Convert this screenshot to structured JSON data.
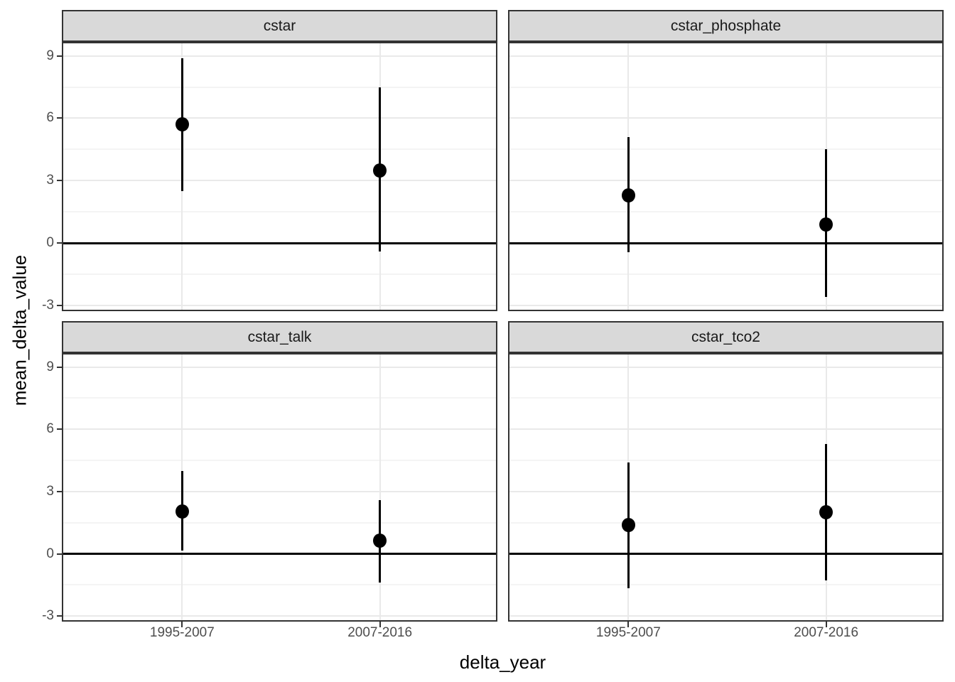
{
  "chart_data": {
    "type": "pointrange",
    "xlabel": "delta_year",
    "ylabel": "mean_delta_value",
    "categories": [
      "1995-2007",
      "2007-2016"
    ],
    "y_ticks": [
      9,
      6,
      3,
      0,
      -3
    ],
    "y_minor_ticks": [
      7.5,
      4.5,
      1.5,
      -1.5
    ],
    "ylim": [
      -3.2,
      9.6
    ],
    "reference_line_y": 0,
    "grid": true,
    "legend": "none",
    "facets": [
      {
        "label": "cstar",
        "points": [
          {
            "x": "1995-2007",
            "y": 5.7,
            "ymin": 2.5,
            "ymax": 8.9
          },
          {
            "x": "2007-2016",
            "y": 3.5,
            "ymin": -0.4,
            "ymax": 7.5
          }
        ]
      },
      {
        "label": "cstar_phosphate",
        "points": [
          {
            "x": "1995-2007",
            "y": 2.3,
            "ymin": -0.45,
            "ymax": 5.1
          },
          {
            "x": "2007-2016",
            "y": 0.9,
            "ymin": -2.6,
            "ymax": 4.5
          }
        ]
      },
      {
        "label": "cstar_talk",
        "points": [
          {
            "x": "1995-2007",
            "y": 2.05,
            "ymin": 0.15,
            "ymax": 4.0
          },
          {
            "x": "2007-2016",
            "y": 0.65,
            "ymin": -1.4,
            "ymax": 2.6
          }
        ]
      },
      {
        "label": "cstar_tco2",
        "points": [
          {
            "x": "1995-2007",
            "y": 1.4,
            "ymin": -1.65,
            "ymax": 4.4
          },
          {
            "x": "2007-2016",
            "y": 2.0,
            "ymin": -1.3,
            "ymax": 5.3
          }
        ]
      }
    ],
    "colors": {
      "point": "#000000",
      "reference_line": "#000000",
      "strip_fill": "#D9D9D9",
      "panel_border": "#333333",
      "grid_major": "#E9E9E9",
      "grid_minor": "#F4F4F4",
      "tick_label": "#4D4D4D",
      "axis_title": "#000000"
    }
  }
}
